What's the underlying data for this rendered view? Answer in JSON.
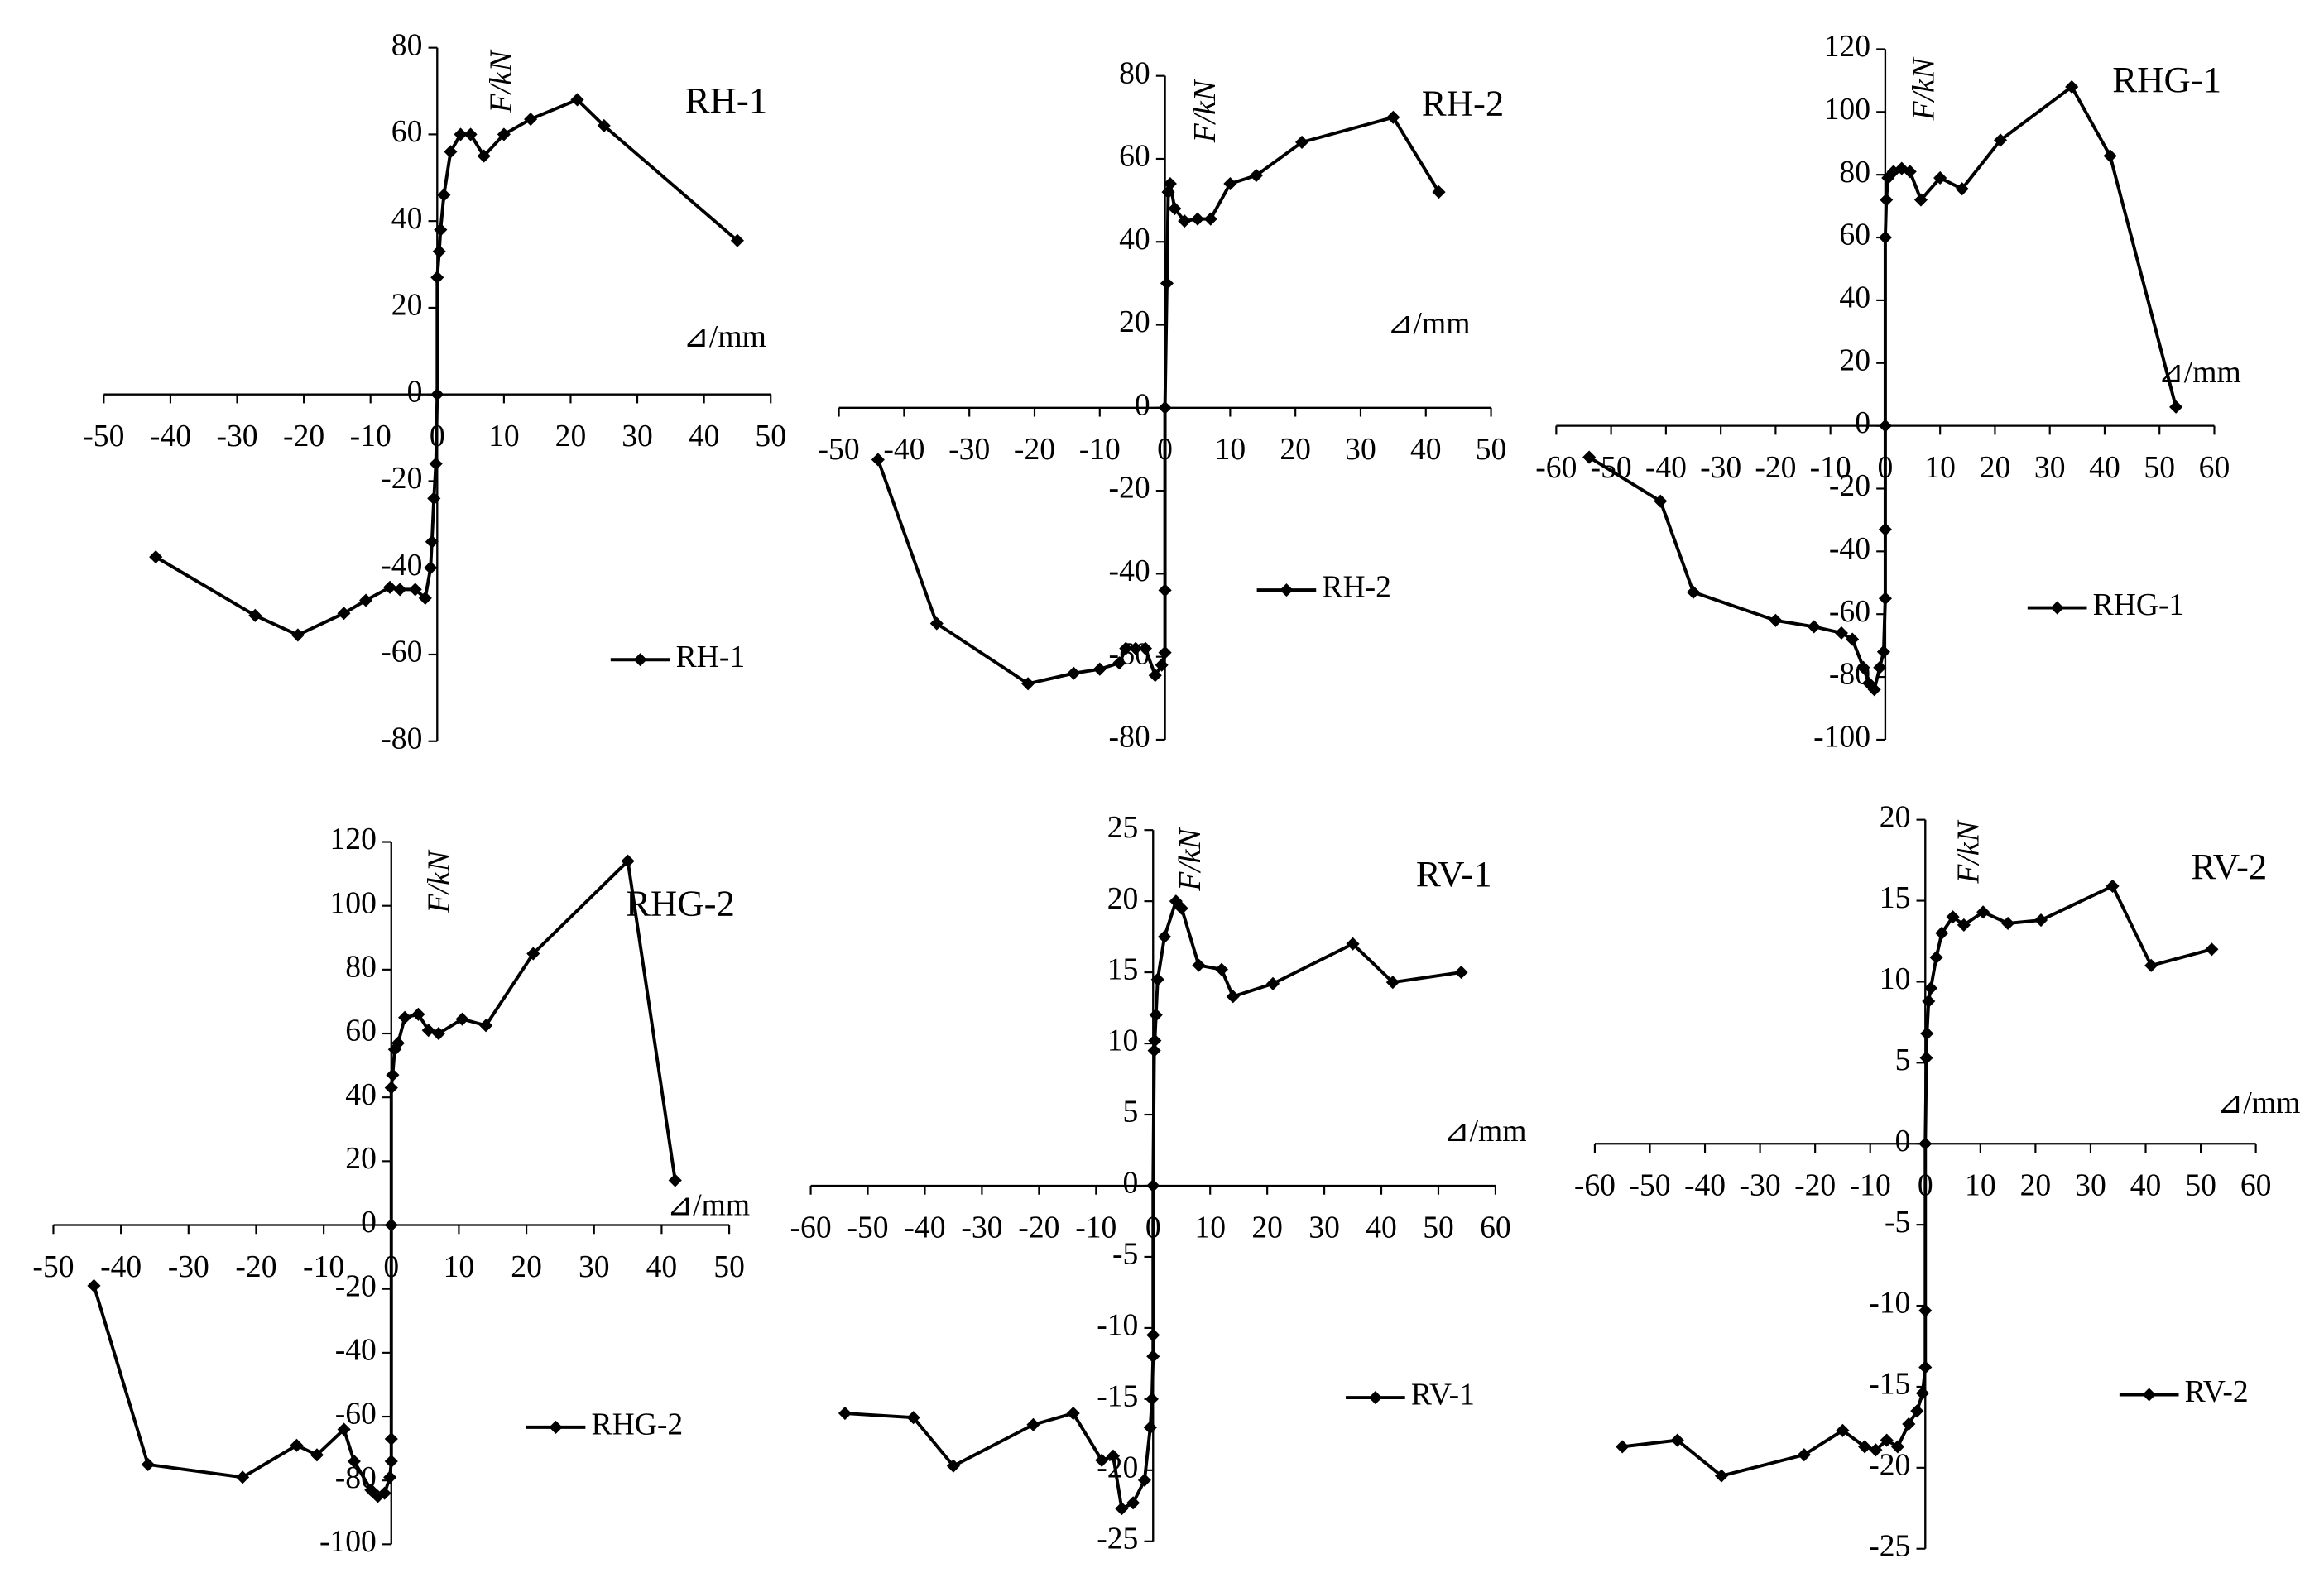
{
  "chart_data": [
    {
      "type": "line",
      "title": "RH-1",
      "x_label": "⊿/mm",
      "y_label": "F/kN",
      "xlim": [
        -50,
        50
      ],
      "ylim": [
        -80,
        80
      ],
      "xticks": [
        -50,
        -40,
        -30,
        -20,
        -10,
        0,
        10,
        20,
        30,
        40,
        50
      ],
      "yticks": [
        -80,
        -60,
        -40,
        -20,
        0,
        20,
        40,
        60,
        80
      ],
      "series": [
        {
          "name": "RH-1",
          "color": "#000000",
          "x": [
            -42.2,
            -27.3,
            -20.9,
            -14,
            -10.7,
            -7.1,
            -5.6,
            -3.3,
            -1.8,
            -1,
            -0.8,
            -0.5,
            -0.2,
            0,
            0,
            0.3,
            0.5,
            1,
            2,
            3.5,
            5,
            7,
            10,
            14,
            21,
            25,
            45
          ],
          "values": [
            -37.5,
            -51,
            -55.5,
            -50.5,
            -47.5,
            -44.5,
            -45,
            -45,
            -47,
            -40,
            -34,
            -24,
            -16,
            0,
            27,
            33,
            38,
            46,
            56,
            60,
            60,
            55,
            60,
            63.5,
            68,
            62,
            35.5
          ]
        }
      ]
    },
    {
      "type": "line",
      "title": "RH-2",
      "x_label": "⊿/mm",
      "y_label": "F/kN",
      "xlim": [
        -50,
        50
      ],
      "ylim": [
        -80,
        80
      ],
      "xticks": [
        -50,
        -40,
        -30,
        -20,
        -10,
        0,
        10,
        20,
        30,
        40,
        50
      ],
      "yticks": [
        -80,
        -60,
        -40,
        -20,
        0,
        20,
        40,
        60,
        80
      ],
      "series": [
        {
          "name": "RH-2",
          "color": "#000000",
          "x": [
            -44,
            -35,
            -21,
            -14,
            -10,
            -7,
            -6,
            -4.5,
            -3,
            -1.5,
            -0.5,
            0,
            0,
            0,
            0.3,
            0.5,
            0.8,
            1.5,
            3,
            5,
            7,
            10,
            14,
            21,
            35,
            42
          ],
          "values": [
            -12.5,
            -52,
            -66.5,
            -64,
            -63,
            -61.5,
            -58,
            -58,
            -58,
            -64.5,
            -62,
            -59,
            -44,
            0,
            30,
            52,
            54,
            48,
            45,
            45.5,
            45.5,
            54,
            56,
            64,
            70,
            52
          ]
        }
      ]
    },
    {
      "type": "line",
      "title": "RHG-1",
      "x_label": "⊿/mm",
      "y_label": "F/kN",
      "xlim": [
        -60,
        60
      ],
      "ylim": [
        -100,
        120
      ],
      "xticks": [
        -60,
        -50,
        -40,
        -30,
        -20,
        -10,
        0,
        10,
        20,
        30,
        40,
        50,
        60
      ],
      "yticks": [
        -100,
        -80,
        -60,
        -40,
        -20,
        0,
        20,
        40,
        60,
        80,
        100,
        120
      ],
      "series": [
        {
          "name": "RHG-1",
          "color": "#000000",
          "x": [
            -54,
            -41,
            -35,
            -20,
            -13,
            -8,
            -6,
            -4,
            -3,
            -2,
            -1,
            -0.3,
            0,
            0,
            0,
            0,
            0.2,
            0.5,
            1.5,
            3,
            4.5,
            6.5,
            10,
            14,
            21,
            34,
            41,
            53
          ],
          "values": [
            -10,
            -24,
            -53,
            -62,
            -64,
            -66,
            -68,
            -77,
            -82,
            -84,
            -77,
            -72,
            -55,
            -33,
            0,
            60,
            72,
            79,
            81,
            82,
            81,
            72,
            79,
            75.5,
            91,
            108,
            86,
            6
          ]
        }
      ]
    },
    {
      "type": "line",
      "title": "RHG-2",
      "x_label": "⊿/mm",
      "y_label": "F/kN",
      "xlim": [
        -50,
        50
      ],
      "ylim": [
        -100,
        120
      ],
      "xticks": [
        -50,
        -40,
        -30,
        -20,
        -10,
        0,
        10,
        20,
        30,
        40,
        50
      ],
      "yticks": [
        -100,
        -80,
        -60,
        -40,
        -20,
        0,
        20,
        40,
        60,
        80,
        100,
        120
      ],
      "series": [
        {
          "name": "RHG-2",
          "color": "#000000",
          "x": [
            -44,
            -36,
            -22,
            -14,
            -11,
            -7,
            -5.5,
            -3,
            -2,
            -1,
            -0.2,
            0,
            0,
            0,
            0,
            0.2,
            0.5,
            1,
            2,
            4,
            5.5,
            7,
            10.5,
            14,
            21,
            35,
            42
          ],
          "values": [
            -19,
            -75,
            -79,
            -69,
            -72,
            -64,
            -74,
            -83,
            -85,
            -84,
            -79,
            -74,
            -67,
            0,
            43,
            47,
            55,
            57,
            65,
            66,
            61,
            60,
            64.5,
            62.5,
            85,
            114,
            14
          ]
        }
      ]
    },
    {
      "type": "line",
      "title": "RV-1",
      "x_label": "⊿/mm",
      "y_label": "F/kN",
      "xlim": [
        -60,
        60
      ],
      "ylim": [
        -25,
        25
      ],
      "xticks": [
        -60,
        -50,
        -40,
        -30,
        -20,
        -10,
        0,
        10,
        20,
        30,
        40,
        50,
        60
      ],
      "yticks": [
        -25,
        -20,
        -15,
        -10,
        -5,
        0,
        5,
        10,
        15,
        20,
        25
      ],
      "series": [
        {
          "name": "RV-1",
          "color": "#000000",
          "x": [
            -54,
            -42,
            -35,
            -21,
            -14,
            -9,
            -7,
            -5.5,
            -3.5,
            -1.5,
            -0.5,
            -0.2,
            0,
            0,
            0,
            0.2,
            0.3,
            0.5,
            0.8,
            2,
            4,
            5,
            8,
            12,
            14,
            21,
            35,
            42,
            54
          ],
          "values": [
            -16,
            -16.3,
            -19.7,
            -16.8,
            -16,
            -19.3,
            -19,
            -22.7,
            -22.3,
            -20.7,
            -17,
            -15,
            -12,
            -10.5,
            0,
            9.5,
            10.2,
            12,
            14.5,
            17.5,
            20,
            19.5,
            15.5,
            15.2,
            13.3,
            14.2,
            17,
            14.3,
            15
          ]
        }
      ]
    },
    {
      "type": "line",
      "title": "RV-2",
      "x_label": "⊿/mm",
      "y_label": "F/kN",
      "xlim": [
        -60,
        60
      ],
      "ylim": [
        -25,
        20
      ],
      "xticks": [
        -60,
        -50,
        -40,
        -30,
        -20,
        -10,
        0,
        10,
        20,
        30,
        40,
        50,
        60
      ],
      "yticks": [
        -25,
        -20,
        -15,
        -10,
        -5,
        0,
        5,
        10,
        15,
        20
      ],
      "series": [
        {
          "name": "RV-2",
          "color": "#000000",
          "x": [
            -55,
            -45,
            -37,
            -22,
            -15,
            -11,
            -9,
            -7,
            -5,
            -3,
            -1.5,
            -0.5,
            0,
            0,
            0,
            0.2,
            0.3,
            0.6,
            1,
            2,
            3,
            5,
            7,
            10.5,
            15,
            21,
            34,
            41,
            52
          ],
          "values": [
            -18.7,
            -18.3,
            -20.5,
            -19.2,
            -17.7,
            -18.7,
            -18.9,
            -18.3,
            -18.7,
            -17.3,
            -16.5,
            -15.4,
            -13.8,
            -10.3,
            0,
            5.3,
            6.8,
            8.8,
            9.6,
            11.5,
            13,
            14,
            13.5,
            14.3,
            13.6,
            13.8,
            15.9,
            11,
            12
          ]
        }
      ]
    }
  ]
}
